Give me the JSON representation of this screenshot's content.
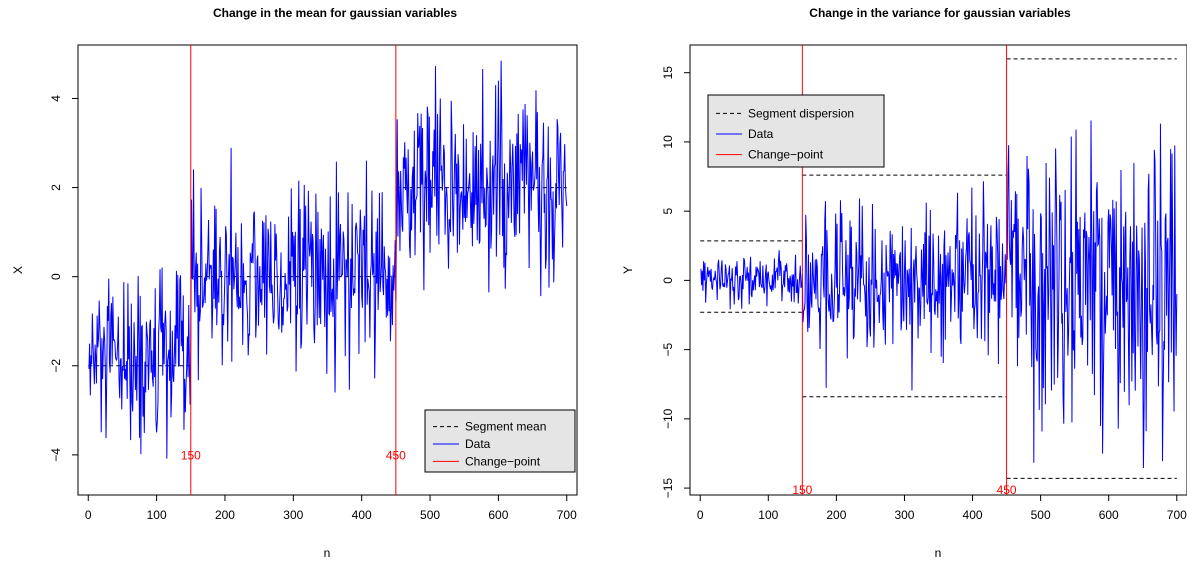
{
  "colors": {
    "data": "#0000ff",
    "changepoint": "#ff0000",
    "reference": "#000000",
    "legend_bg": "#e5e5e5"
  },
  "chart_data": [
    {
      "type": "line",
      "title": "Change in the mean for gaussian variables",
      "xlabel": "n",
      "ylabel": "X",
      "xlim": [
        -15,
        715
      ],
      "ylim": [
        -4.9,
        5.2
      ],
      "xticks": [
        0,
        100,
        200,
        300,
        400,
        500,
        600,
        700
      ],
      "yticks": [
        -4,
        -2,
        0,
        2,
        4
      ],
      "n_points": 700,
      "changepoints": [
        150,
        450
      ],
      "changepoint_labels": [
        "150",
        "450"
      ],
      "legend": {
        "position": "bottom-right",
        "entries": [
          "Segment mean",
          "Data",
          "Change−point"
        ]
      },
      "segments": [
        {
          "start": 1,
          "end": 150,
          "mean": -2.0,
          "sd": 1.0
        },
        {
          "start": 151,
          "end": 450,
          "mean": 0.0,
          "sd": 1.0
        },
        {
          "start": 451,
          "end": 700,
          "mean": 2.0,
          "sd": 1.0
        }
      ],
      "reference_lines": [
        {
          "y": -2.0,
          "x_start": 0,
          "x_end": 150
        },
        {
          "y": 0.0,
          "x_start": 150,
          "x_end": 450
        },
        {
          "y": 2.0,
          "x_start": 450,
          "x_end": 700
        }
      ],
      "series": [
        {
          "name": "Data",
          "y_min": -4.6,
          "y_max": 4.85
        }
      ]
    },
    {
      "type": "line",
      "title": "Change in the variance for gaussian variables",
      "xlabel": "n",
      "ylabel": "Y",
      "xlim": [
        -15,
        715
      ],
      "ylim": [
        -15.5,
        17.0
      ],
      "xticks": [
        0,
        100,
        200,
        300,
        400,
        500,
        600,
        700
      ],
      "yticks": [
        -15,
        -10,
        -5,
        0,
        5,
        10,
        15
      ],
      "n_points": 700,
      "changepoints": [
        150,
        450
      ],
      "changepoint_labels": [
        "150",
        "450"
      ],
      "legend": {
        "position": "top-left",
        "entries": [
          "Segment dispersion",
          "Data",
          "Change−point"
        ]
      },
      "segments": [
        {
          "start": 1,
          "end": 150,
          "mean": 0.0,
          "sd": 0.9
        },
        {
          "start": 151,
          "end": 450,
          "mean": 0.0,
          "sd": 2.8
        },
        {
          "start": 451,
          "end": 700,
          "mean": 0.0,
          "sd": 5.5
        }
      ],
      "reference_lines": [
        {
          "y": 2.85,
          "x_start": 0,
          "x_end": 150
        },
        {
          "y": -2.3,
          "x_start": 0,
          "x_end": 150
        },
        {
          "y": 7.6,
          "x_start": 150,
          "x_end": 450
        },
        {
          "y": -8.4,
          "x_start": 150,
          "x_end": 450
        },
        {
          "y": 16.0,
          "x_start": 450,
          "x_end": 700
        },
        {
          "y": -14.3,
          "x_start": 450,
          "x_end": 700
        }
      ],
      "series": [
        {
          "name": "Data",
          "y_min": -14.3,
          "y_max": 16.0
        }
      ]
    }
  ]
}
